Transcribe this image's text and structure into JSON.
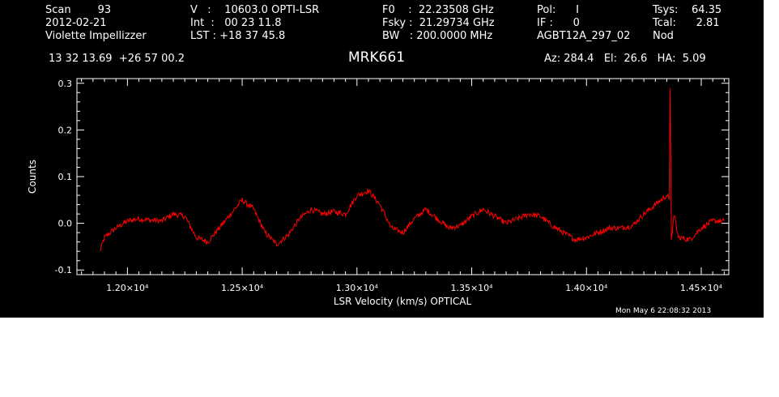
{
  "header": {
    "col1": [
      "Scan        93",
      "2012-02-21",
      "Violette Impellizzer"
    ],
    "col2": [
      "V   :    10603.0 OPTI-LSR",
      "Int  :   00 23 11.8",
      "LST : +18 37 45.8"
    ],
    "col3": [
      "F0    :  22.23508 GHz",
      "Fsky :  21.29734 GHz",
      "BW   : 200.0000 MHz"
    ],
    "col4": [
      "Pol:      I",
      "IF :      0",
      "AGBT12A_297_02"
    ],
    "col5": [
      "Tsys:    64.35",
      "Tcal:      2.81",
      "Nod"
    ],
    "coords": "13 32 13.69  +26 57 00.2",
    "source": "MRK661",
    "azelha": "Az: 284.4   El:  26.6   HA:  5.09"
  },
  "footer": {
    "timestamp": "Mon May  6 22:08:32 2013"
  },
  "colors": {
    "background": "#000000",
    "axes": "#ffffff",
    "trace": "#ff0000"
  },
  "chart_data": {
    "type": "line",
    "xlabel": "LSR Velocity (km/s) OPTICAL",
    "ylabel": "Counts",
    "xlim": [
      11780,
      14620
    ],
    "ylim": [
      -0.11,
      0.31
    ],
    "xticks": [
      {
        "value": 12000,
        "label": "1.20×10⁴"
      },
      {
        "value": 12500,
        "label": "1.25×10⁴"
      },
      {
        "value": 13000,
        "label": "1.30×10⁴"
      },
      {
        "value": 13500,
        "label": "1.35×10⁴"
      },
      {
        "value": 14000,
        "label": "1.40×10⁴"
      },
      {
        "value": 14500,
        "label": "1.45×10⁴"
      }
    ],
    "yticks": [
      {
        "value": -0.1,
        "label": "-0.1"
      },
      {
        "value": 0.0,
        "label": "0.0"
      },
      {
        "value": 0.1,
        "label": "0.1"
      },
      {
        "value": 0.2,
        "label": "0.2"
      },
      {
        "value": 0.3,
        "label": "0.3"
      }
    ],
    "series": [
      {
        "color": "#ff0000",
        "x": [
          11880,
          11900,
          11950,
          12000,
          12050,
          12080,
          12150,
          12200,
          12250,
          12300,
          12350,
          12400,
          12450,
          12500,
          12550,
          12600,
          12650,
          12700,
          12750,
          12800,
          12850,
          12900,
          12950,
          13000,
          13050,
          13100,
          13150,
          13200,
          13250,
          13300,
          13350,
          13400,
          13450,
          13500,
          13550,
          13600,
          13650,
          13700,
          13750,
          13800,
          13850,
          13900,
          13950,
          14000,
          14050,
          14100,
          14150,
          14200,
          14250,
          14300,
          14350,
          14360,
          14365,
          14370,
          14380,
          14400,
          14450,
          14500,
          14550,
          14600
        ],
        "y": [
          -0.06,
          -0.03,
          -0.01,
          0.005,
          0.01,
          0.008,
          0.005,
          0.02,
          0.015,
          -0.03,
          -0.04,
          -0.01,
          0.02,
          0.05,
          0.03,
          -0.02,
          -0.045,
          -0.025,
          0.01,
          0.03,
          0.02,
          0.025,
          0.02,
          0.06,
          0.07,
          0.04,
          -0.01,
          -0.02,
          0.01,
          0.03,
          0.01,
          -0.01,
          -0.005,
          0.015,
          0.03,
          0.015,
          0.0,
          0.01,
          0.02,
          0.015,
          -0.005,
          -0.02,
          -0.035,
          -0.03,
          -0.02,
          -0.01,
          -0.01,
          -0.005,
          0.02,
          0.04,
          0.06,
          0.05,
          0.29,
          -0.04,
          0.02,
          -0.03,
          -0.035,
          -0.01,
          0.005,
          0.005
        ]
      }
    ]
  }
}
